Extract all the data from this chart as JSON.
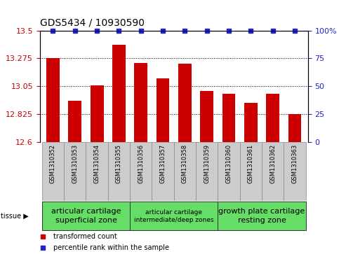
{
  "title": "GDS5434 / 10930590",
  "samples": [
    "GSM1310352",
    "GSM1310353",
    "GSM1310354",
    "GSM1310355",
    "GSM1310356",
    "GSM1310357",
    "GSM1310358",
    "GSM1310359",
    "GSM1310360",
    "GSM1310361",
    "GSM1310362",
    "GSM1310363"
  ],
  "transformed_counts": [
    13.275,
    12.935,
    13.06,
    13.385,
    13.24,
    13.115,
    13.23,
    13.015,
    12.99,
    12.915,
    12.99,
    12.825
  ],
  "percentile_ranks": [
    100,
    100,
    100,
    100,
    100,
    100,
    100,
    100,
    100,
    100,
    100,
    100
  ],
  "ylim": [
    12.6,
    13.5
  ],
  "yticks": [
    12.6,
    12.825,
    13.05,
    13.275,
    13.5
  ],
  "right_yticks": [
    0,
    25,
    50,
    75,
    100
  ],
  "bar_color": "#cc0000",
  "percentile_color": "#2222cc",
  "tissue_groups": [
    {
      "label": "articular cartilage\nsuperficial zone",
      "start": 0,
      "end": 4,
      "fontsize": 8
    },
    {
      "label": "articular cartilage\nintermediate/deep zones",
      "start": 4,
      "end": 8,
      "fontsize": 6.5
    },
    {
      "label": "growth plate cartilage\nresting zone",
      "start": 8,
      "end": 12,
      "fontsize": 8
    }
  ],
  "tissue_box_color": "#66dd66",
  "tissue_box_edge": "#333333",
  "sample_box_color": "#cccccc",
  "sample_box_edge": "#888888",
  "legend_items": [
    {
      "label": "transformed count",
      "color": "#cc0000"
    },
    {
      "label": "percentile rank within the sample",
      "color": "#2222cc"
    }
  ]
}
